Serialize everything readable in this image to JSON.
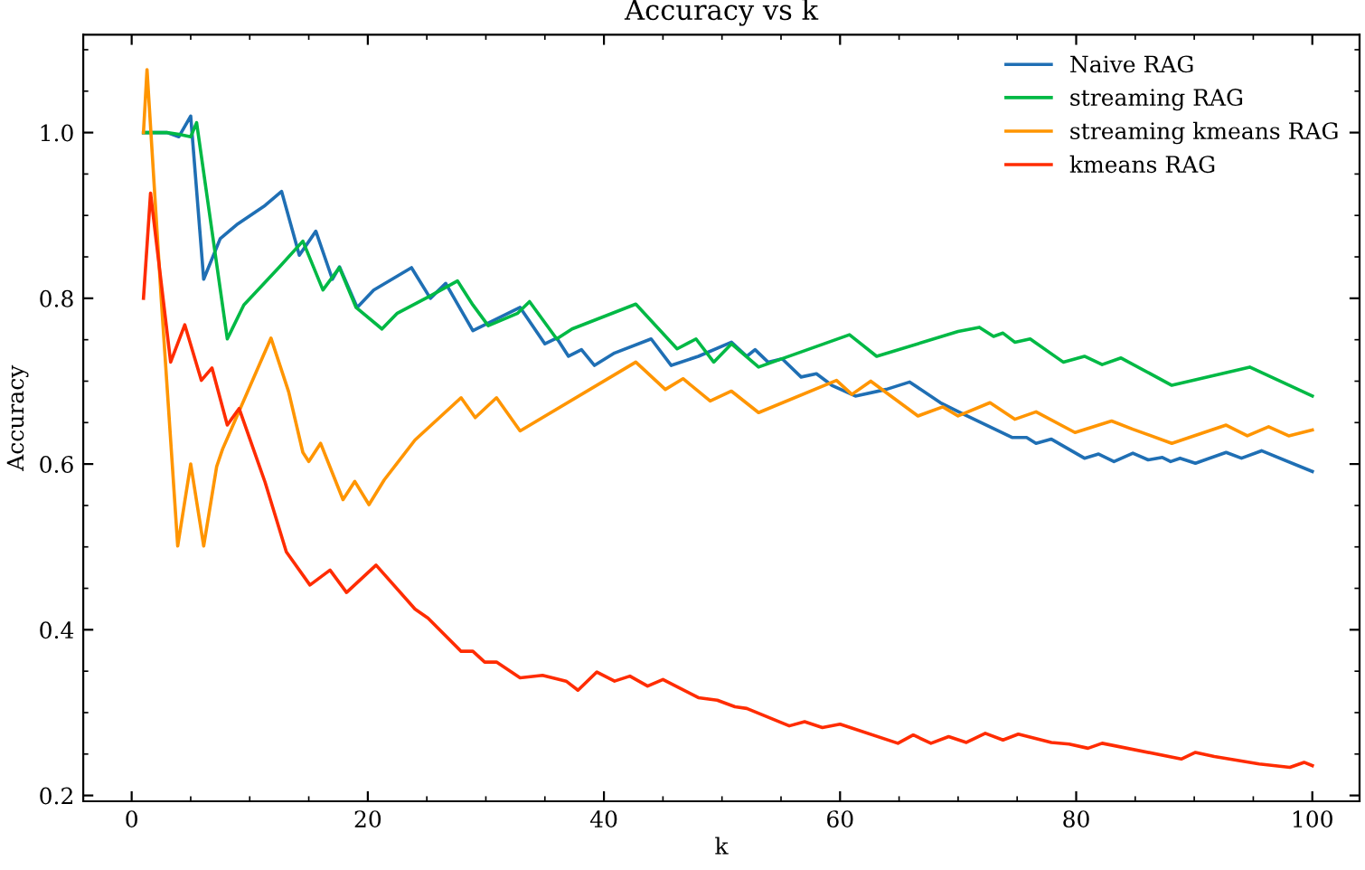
{
  "chart_data": {
    "type": "line",
    "title": "Accuracy vs k",
    "xlabel": "k",
    "ylabel": "Accuracy",
    "xlim": [
      -4.1,
      104
    ],
    "ylim": [
      0.193,
      1.118
    ],
    "xticks": [
      0,
      {
        "value": 5,
        "label": null
      },
      {
        "value": 10,
        "label": null
      },
      {
        "value": 15,
        "label": null
      },
      20,
      {
        "value": 25,
        "label": null
      },
      {
        "value": 30,
        "label": null
      },
      {
        "value": 35,
        "label": null
      },
      40,
      {
        "value": 45,
        "label": null
      },
      {
        "value": 50,
        "label": null
      },
      {
        "value": 55,
        "label": null
      },
      60,
      {
        "value": 65,
        "label": null
      },
      {
        "value": 70,
        "label": null
      },
      {
        "value": 75,
        "label": null
      },
      80,
      {
        "value": 85,
        "label": null
      },
      {
        "value": 90,
        "label": null
      },
      {
        "value": 95,
        "label": null
      },
      100
    ],
    "yticks": [
      0.2,
      {
        "value": 0.25,
        "label": null
      },
      {
        "value": 0.3,
        "label": null
      },
      {
        "value": 0.35,
        "label": null
      },
      0.4,
      {
        "value": 0.45,
        "label": null
      },
      {
        "value": 0.5,
        "label": null
      },
      {
        "value": 0.55,
        "label": null
      },
      0.6,
      {
        "value": 0.65,
        "label": null
      },
      {
        "value": 0.7,
        "label": null
      },
      {
        "value": 0.75,
        "label": null
      },
      0.8,
      {
        "value": 0.85,
        "label": null
      },
      {
        "value": 0.9,
        "label": null
      },
      {
        "value": 0.95,
        "label": null
      },
      {
        "value": 1.0,
        "label": "1.0"
      },
      {
        "value": 1.05,
        "label": null
      },
      {
        "value": 1.1,
        "label": null
      }
    ],
    "grid": false,
    "legend": "top right",
    "marker": "none",
    "line_style": "solid",
    "series": [
      {
        "name": "Naive RAG",
        "color": "#1f6fb4",
        "x": [
          1,
          2,
          3,
          4,
          5,
          6.1,
          7.5,
          9,
          11.3,
          12.7,
          14.2,
          15.6,
          17,
          17.6,
          19.1,
          20.5,
          23.7,
          25.3,
          26.6,
          28.9,
          32.9,
          35,
          36,
          37,
          38.1,
          39.2,
          40.9,
          44,
          45.7,
          48,
          50.8,
          52.1,
          52.8,
          53.9,
          55.1,
          56.7,
          58,
          59.3,
          61.3,
          63.9,
          65.9,
          68.5,
          70.2,
          74.6,
          75.8,
          76.6,
          77.9,
          80.7,
          81.9,
          83.2,
          84.8,
          86.1,
          87.3,
          88,
          88.8,
          90.1,
          92.7,
          94,
          95.7,
          100
        ],
        "values": [
          1.0,
          1.0,
          1.0,
          0.995,
          1.02,
          0.823,
          0.872,
          0.89,
          0.912,
          0.929,
          0.852,
          0.881,
          0.823,
          0.838,
          0.789,
          0.81,
          0.837,
          0.8,
          0.818,
          0.761,
          0.789,
          0.745,
          0.752,
          0.73,
          0.738,
          0.719,
          0.734,
          0.751,
          0.719,
          0.73,
          0.747,
          0.73,
          0.738,
          0.723,
          0.727,
          0.705,
          0.709,
          0.695,
          0.682,
          0.69,
          0.699,
          0.674,
          0.662,
          0.632,
          0.632,
          0.625,
          0.63,
          0.607,
          0.612,
          0.603,
          0.613,
          0.605,
          0.608,
          0.603,
          0.607,
          0.601,
          0.614,
          0.607,
          0.616,
          0.591
        ]
      },
      {
        "name": "streaming RAG",
        "color": "#00b945",
        "x": [
          1,
          2,
          3,
          4,
          5,
          5.5,
          8.1,
          9.5,
          12.6,
          14.5,
          16.2,
          17.6,
          19,
          21.2,
          22.5,
          25.3,
          27.6,
          28.9,
          30.2,
          32.7,
          33.7,
          36,
          37.3,
          42.7,
          46.2,
          47.8,
          49.3,
          50.8,
          53.1,
          60.8,
          63.1,
          70,
          71.8,
          73,
          73.8,
          74.8,
          76.1,
          78.9,
          80.7,
          82.2,
          83.8,
          88.1,
          94.7,
          100
        ],
        "values": [
          1.0,
          1.0,
          1.0,
          0.998,
          0.995,
          1.012,
          0.751,
          0.792,
          0.839,
          0.869,
          0.81,
          0.837,
          0.789,
          0.763,
          0.782,
          0.803,
          0.821,
          0.792,
          0.767,
          0.782,
          0.796,
          0.751,
          0.763,
          0.793,
          0.739,
          0.751,
          0.723,
          0.745,
          0.717,
          0.756,
          0.73,
          0.76,
          0.765,
          0.754,
          0.758,
          0.747,
          0.751,
          0.723,
          0.73,
          0.72,
          0.728,
          0.695,
          0.717,
          0.682
        ]
      },
      {
        "name": "streaming kmeans RAG",
        "color": "#ff9500",
        "x": [
          1,
          1.3,
          2.5,
          3.9,
          5,
          6.1,
          7.2,
          7.7,
          11.8,
          13.3,
          14.5,
          15,
          16,
          17.9,
          18.9,
          20.1,
          21.4,
          24,
          27.9,
          29.1,
          30.9,
          32.9,
          42.7,
          45.2,
          46.7,
          49,
          50.8,
          53.1,
          59.7,
          61,
          62.6,
          66.6,
          68.7,
          70,
          72.7,
          74.8,
          76.6,
          79.9,
          83,
          84.8,
          88.1,
          92.7,
          94.5,
          96.3,
          98,
          100
        ],
        "values": [
          1.0,
          1.076,
          0.8,
          0.501,
          0.6,
          0.501,
          0.597,
          0.618,
          0.752,
          0.687,
          0.614,
          0.603,
          0.625,
          0.557,
          0.579,
          0.551,
          0.581,
          0.629,
          0.68,
          0.656,
          0.68,
          0.64,
          0.723,
          0.69,
          0.703,
          0.676,
          0.688,
          0.662,
          0.701,
          0.684,
          0.7,
          0.658,
          0.669,
          0.658,
          0.674,
          0.654,
          0.663,
          0.638,
          0.652,
          0.642,
          0.625,
          0.647,
          0.634,
          0.645,
          0.634,
          0.641
        ]
      },
      {
        "name": "kmeans RAG",
        "color": "#ff2c00",
        "x": [
          1,
          1.6,
          3.3,
          4.5,
          5.9,
          6.8,
          8.1,
          9.1,
          11.3,
          13.1,
          15.1,
          16.8,
          18.2,
          20.7,
          24,
          25.1,
          27.9,
          28.9,
          29.9,
          30.9,
          32.9,
          34.8,
          36.8,
          37.8,
          39.4,
          40.9,
          42.2,
          43.7,
          45,
          48,
          49.6,
          51.1,
          52.1,
          55.7,
          57,
          58.5,
          60,
          64.9,
          66.2,
          67.7,
          69.2,
          70.7,
          72.3,
          73.8,
          75.1,
          77.9,
          79.4,
          81,
          82.2,
          88.9,
          90.1,
          91.7,
          95.5,
          98.1,
          99.3,
          100
        ],
        "values": [
          0.8,
          0.927,
          0.723,
          0.768,
          0.701,
          0.716,
          0.647,
          0.667,
          0.578,
          0.494,
          0.454,
          0.472,
          0.445,
          0.478,
          0.425,
          0.414,
          0.374,
          0.374,
          0.361,
          0.361,
          0.342,
          0.345,
          0.338,
          0.327,
          0.349,
          0.338,
          0.344,
          0.332,
          0.34,
          0.318,
          0.315,
          0.307,
          0.305,
          0.284,
          0.289,
          0.282,
          0.286,
          0.263,
          0.273,
          0.263,
          0.271,
          0.264,
          0.275,
          0.267,
          0.274,
          0.264,
          0.262,
          0.257,
          0.263,
          0.244,
          0.252,
          0.247,
          0.238,
          0.234,
          0.24,
          0.236
        ]
      }
    ]
  }
}
